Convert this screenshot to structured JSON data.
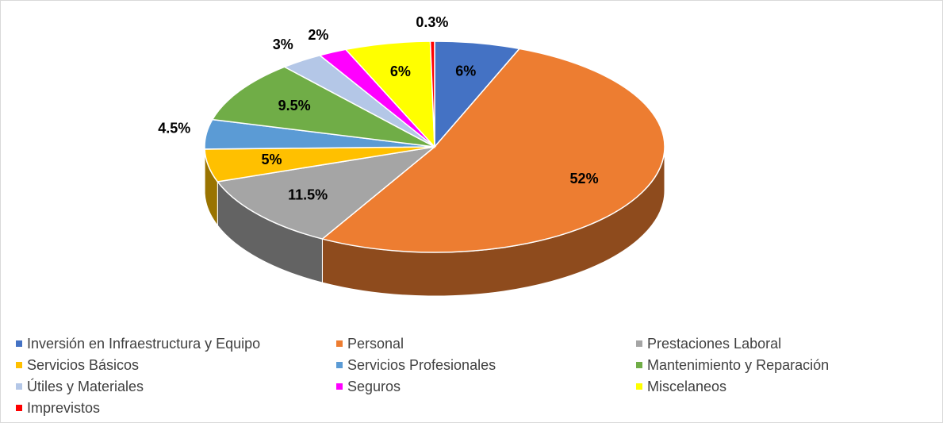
{
  "chart_data": {
    "type": "pie3d",
    "categories": [
      "Inversión en Infraestructura y Equipo",
      "Personal",
      "Prestaciones Laboral",
      "Servicios Básicos",
      "Servicios Profesionales",
      "Mantenimiento y Reparación",
      "Útiles y Materiales",
      "Seguros",
      "Miscelaneos",
      "Imprevistos"
    ],
    "values": [
      6,
      52,
      11.5,
      5,
      4.5,
      9.5,
      3,
      2,
      6,
      0.3
    ],
    "value_labels": [
      "6%",
      "52%",
      "11.5%",
      "5%",
      "4.5%",
      "9.5%",
      "3%",
      "2%",
      "6%",
      "0.3%"
    ],
    "colors": [
      "#4472c4",
      "#ed7d31",
      "#a5a5a5",
      "#ffc000",
      "#5b9bd5",
      "#70ad47",
      "#b4c7e7",
      "#ff00ff",
      "#ffff00",
      "#ff0000"
    ],
    "legend": "bottom"
  }
}
